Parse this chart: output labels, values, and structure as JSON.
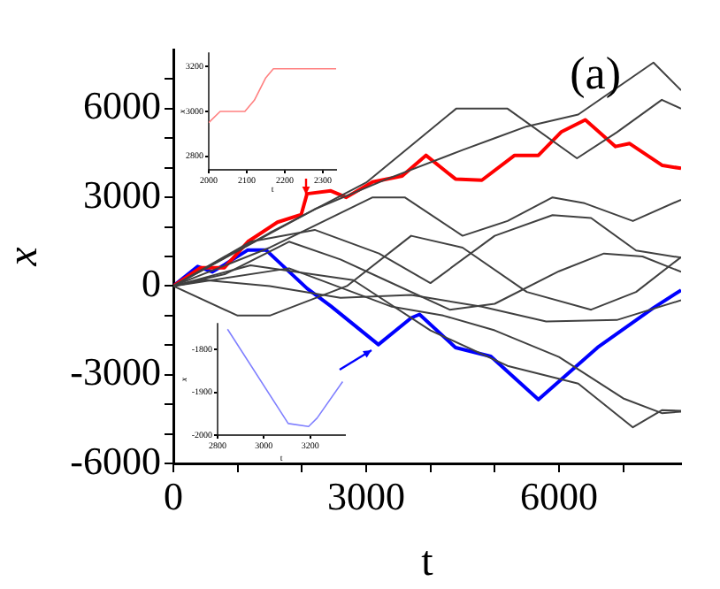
{
  "chart_data": [
    {
      "type": "line",
      "xlabel": "t",
      "ylabel": "x",
      "annotations": [
        "(a)"
      ],
      "xlim": [
        0,
        7900
      ],
      "ylim": [
        -6000,
        8000
      ],
      "xticks": [
        0,
        {
          "value": 1000,
          "label": null
        },
        {
          "value": 2000,
          "label": null
        },
        3000,
        {
          "value": 4000,
          "label": null
        },
        {
          "value": 5000,
          "label": null
        },
        6000,
        {
          "value": 7000,
          "label": null
        }
      ],
      "yticks": [
        -6000,
        {
          "value": -5000,
          "label": null
        },
        {
          "value": -4000,
          "label": null
        },
        -3000,
        {
          "value": -2000,
          "label": null
        },
        {
          "value": -1000,
          "label": null
        },
        0,
        {
          "value": 1000,
          "label": null
        },
        {
          "value": 2000,
          "label": null
        },
        3000,
        {
          "value": 4000,
          "label": null
        },
        {
          "value": 5000,
          "label": null
        },
        6000,
        {
          "value": 7000,
          "label": null
        }
      ],
      "series": [
        {
          "color": "#404040",
          "x": [
            0,
            1500,
            3000,
            4400,
            5200,
            6280,
            6900,
            7600,
            7900
          ],
          "values": [
            0,
            1800,
            3500,
            6000,
            6000,
            4320,
            5200,
            6300,
            6000
          ]
        },
        {
          "color": "#404040",
          "x": [
            0,
            2200,
            3300,
            4500,
            5000,
            5500,
            6300,
            7470,
            7900
          ],
          "values": [
            0,
            2600,
            3600,
            4600,
            5000,
            5400,
            5800,
            7560,
            6620
          ]
        },
        {
          "color": "#404040",
          "x": [
            0,
            1500,
            3100,
            3600,
            4500,
            5200,
            5900,
            6400,
            7150,
            7900
          ],
          "values": [
            0,
            1300,
            3000,
            3000,
            1700,
            2200,
            3000,
            2800,
            2200,
            2920
          ]
        },
        {
          "color": "#404040",
          "x": [
            0,
            1200,
            2200,
            3200,
            4000,
            5000,
            5900,
            6500,
            7200,
            7900
          ],
          "values": [
            0,
            1500,
            1900,
            1100,
            100,
            1700,
            2400,
            2300,
            1200,
            960
          ]
        },
        {
          "color": "#404040",
          "x": [
            0,
            800,
            1800,
            2600,
            3300,
            4300,
            5000,
            6000,
            6700,
            7300,
            7900
          ],
          "values": [
            0,
            400,
            1500,
            900,
            200,
            -800,
            -600,
            500,
            1100,
            1000,
            480
          ]
        },
        {
          "color": "#404040",
          "x": [
            0,
            1000,
            1500,
            2700,
            3700,
            4500,
            5500,
            6500,
            7200,
            7900
          ],
          "values": [
            0,
            -1000,
            -1000,
            0,
            1700,
            1300,
            -200,
            -800,
            -200,
            980
          ]
        },
        {
          "color": "#404040",
          "x": [
            0,
            500,
            1500,
            2600,
            3700,
            4800,
            5800,
            6900,
            7900
          ],
          "values": [
            0,
            200,
            0,
            -400,
            -300,
            -700,
            -1200,
            -1150,
            -480
          ]
        },
        {
          "color": "#404040",
          "x": [
            0,
            1200,
            2800,
            4000,
            5200,
            6300,
            7150,
            7600,
            7900
          ],
          "values": [
            0,
            700,
            200,
            -1500,
            -2700,
            -3300,
            -4780,
            -4200,
            -4220
          ]
        },
        {
          "color": "#404040",
          "x": [
            0,
            1800,
            3400,
            4200,
            5000,
            6000,
            7000,
            7600,
            7900
          ],
          "values": [
            0,
            600,
            -700,
            -1000,
            -1500,
            -2400,
            -3800,
            -4300,
            -4250
          ]
        },
        {
          "color": "#ff0000",
          "x": [
            0,
            424,
            793,
            1160,
            1620,
            1990,
            2080,
            2450,
            2690,
            3100,
            3560,
            3930,
            4390,
            4800,
            5310,
            5680,
            6040,
            6410,
            6880,
            7100,
            7610,
            7900
          ],
          "values": [
            0,
            620,
            620,
            1500,
            2160,
            2420,
            3120,
            3220,
            3000,
            3520,
            3720,
            4420,
            3620,
            3580,
            4420,
            4420,
            5220,
            5620,
            4720,
            4820,
            4080,
            3980
          ]
        },
        {
          "color": "#0000ff",
          "x": [
            0,
            378,
            608,
            793,
            1160,
            1440,
            2080,
            2450,
            3190,
            3700,
            3830,
            4390,
            4940,
            5680,
            6600,
            7470,
            7900
          ],
          "values": [
            0,
            660,
            480,
            720,
            1220,
            1220,
            -80,
            -680,
            -1980,
            -1080,
            -960,
            -2080,
            -2380,
            -3840,
            -2080,
            -740,
            -140
          ]
        }
      ]
    },
    {
      "type": "line",
      "xlabel": "t",
      "ylabel": "x",
      "xlim": [
        2000,
        2335
      ],
      "ylim": [
        2740,
        3260
      ],
      "xticks": [
        2000,
        2100,
        2200,
        2300
      ],
      "yticks": [
        2800,
        3000,
        3200
      ],
      "series": [
        {
          "color": "#ff8080",
          "x": [
            2000,
            2030,
            2095,
            2120,
            2150,
            2170,
            2200,
            2335
          ],
          "values": [
            2950,
            3000,
            3000,
            3050,
            3150,
            3190,
            3190,
            3190
          ]
        }
      ]
    },
    {
      "type": "line",
      "xlabel": "t",
      "ylabel": "x",
      "xlim": [
        2800,
        3350
      ],
      "ylim": [
        -2000,
        -1740
      ],
      "xticks": [
        2800,
        3000,
        3200
      ],
      "yticks": [
        -1800,
        -1900,
        -2000
      ],
      "series": [
        {
          "color": "#8080ff",
          "x": [
            2843,
            3105,
            3193,
            3230,
            3340
          ],
          "values": [
            -1753,
            -1973,
            -1980,
            -1960,
            -1875
          ]
        }
      ]
    }
  ]
}
